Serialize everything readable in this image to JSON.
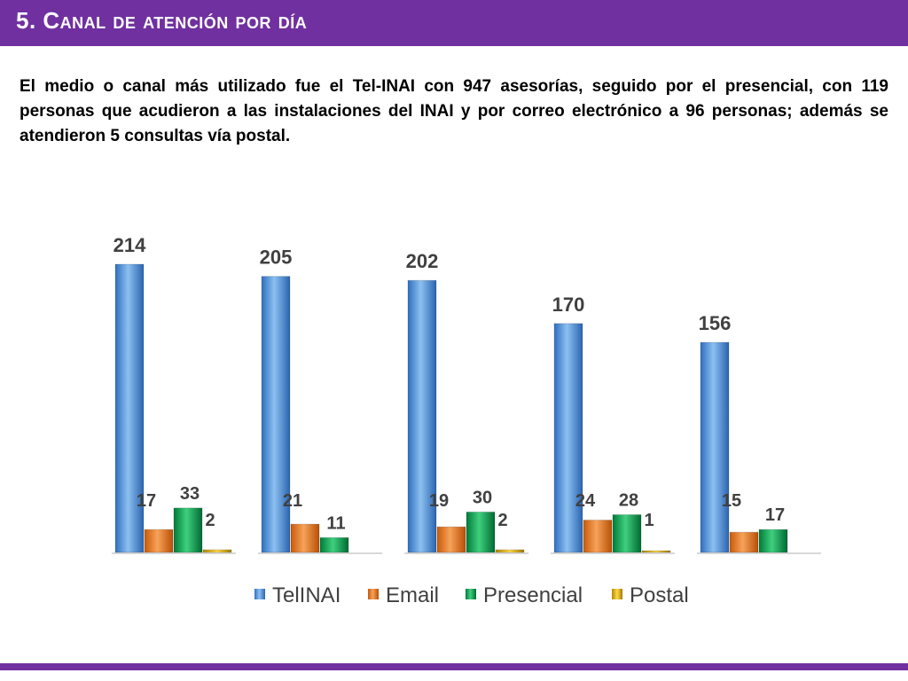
{
  "header": {
    "title": "5. Canal de atención por día"
  },
  "body": {
    "paragraph": "El medio o canal más utilizado fue el Tel-INAI con 947 asesorías, seguido por el presencial, con 119 personas que acudieron a las instalaciones del INAI y por correo electrónico a 96 personas; además se atendieron 5 consultas vía postal."
  },
  "colors": {
    "header_bg": "#7030a0",
    "TelINAI": "#4a90d9",
    "Email": "#e46c0a",
    "Presencial": "#00a050",
    "Postal": "#e6b800"
  },
  "chart_data": {
    "type": "bar",
    "categories": [
      "",
      "",
      "",
      "",
      ""
    ],
    "series": [
      {
        "name": "TelINAI",
        "values": [
          214,
          205,
          202,
          170,
          156
        ]
      },
      {
        "name": "Email",
        "values": [
          17,
          21,
          19,
          24,
          15
        ]
      },
      {
        "name": "Presencial",
        "values": [
          33,
          11,
          30,
          28,
          17
        ]
      },
      {
        "name": "Postal",
        "values": [
          2,
          null,
          2,
          1,
          null
        ]
      }
    ],
    "ylim": [
      0,
      214
    ],
    "grid": false,
    "legend": "bottom",
    "data_labels": true
  }
}
